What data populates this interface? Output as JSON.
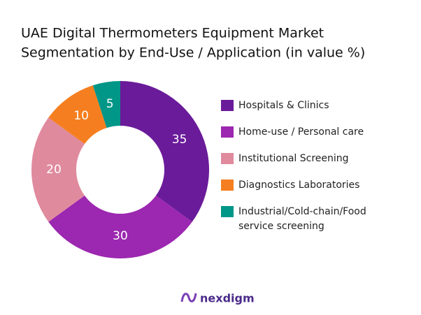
{
  "chart_data": {
    "type": "donut",
    "title": [
      "UAE Digital Thermometers Equipment Market",
      "Segmentation by End-Use / Application (in value %)"
    ],
    "categories": [
      "Hospitals & Clinics",
      "Home-use / Personal care",
      "Institutional Screening",
      "Diagnostics Laboratories",
      "Industrial/Cold-chain/Food service screening"
    ],
    "values": [
      35,
      30,
      20,
      10,
      5
    ],
    "colors": [
      "#6a1b9a",
      "#9c27b0",
      "#e08a9e",
      "#f57f20",
      "#009688"
    ],
    "legend": "right"
  },
  "brand": "nexdigm"
}
